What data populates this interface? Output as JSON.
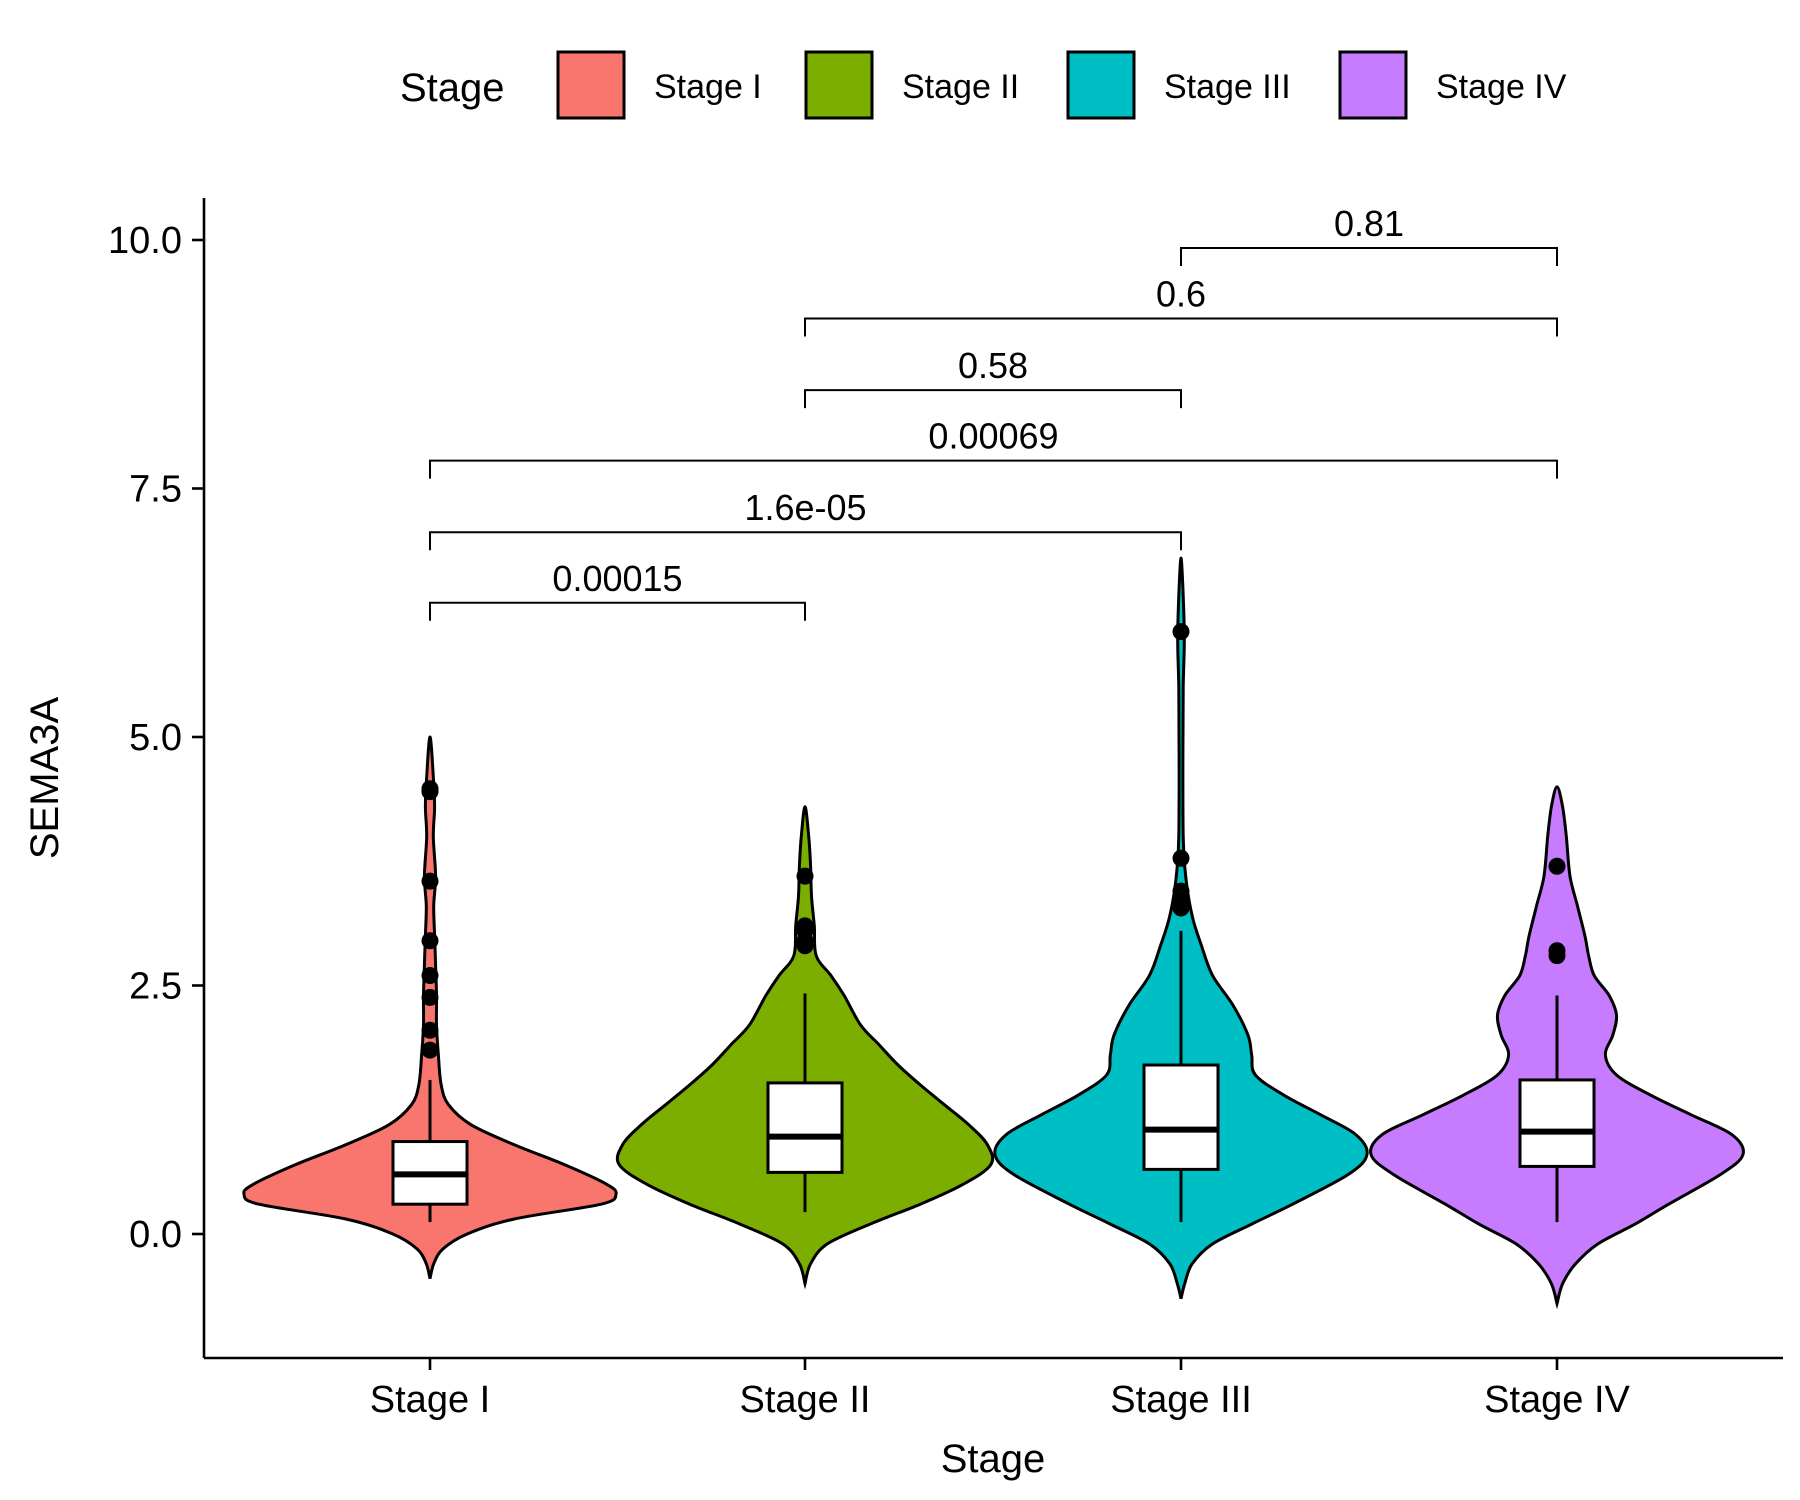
{
  "chart_data": {
    "type": "violin",
    "title": "",
    "xlabel": "Stage",
    "ylabel": "SEMA3A",
    "ylim": [
      -1.2,
      10.4
    ],
    "yticks": [
      0.0,
      2.5,
      5.0,
      7.5,
      10.0
    ],
    "ytick_labels": [
      "0.0",
      "2.5",
      "5.0",
      "7.5",
      "10.0"
    ],
    "grid": false,
    "legend": {
      "title": "Stage",
      "position": "top",
      "entries": [
        "Stage I",
        "Stage II",
        "Stage III",
        "Stage IV"
      ]
    },
    "categories": [
      "Stage I",
      "Stage II",
      "Stage III",
      "Stage IV"
    ],
    "colors": [
      "#F8766D",
      "#7CAE00",
      "#00BFC4",
      "#C77CFF"
    ],
    "violins": [
      {
        "name": "Stage I",
        "density": [
          [
            -0.45,
            0.0
          ],
          [
            -0.3,
            0.02
          ],
          [
            -0.15,
            0.07
          ],
          [
            0.0,
            0.2
          ],
          [
            0.15,
            0.45
          ],
          [
            0.3,
            0.92
          ],
          [
            0.4,
            1.0
          ],
          [
            0.5,
            0.95
          ],
          [
            0.7,
            0.72
          ],
          [
            0.9,
            0.45
          ],
          [
            1.1,
            0.22
          ],
          [
            1.3,
            0.1
          ],
          [
            1.5,
            0.06
          ],
          [
            1.8,
            0.045
          ],
          [
            2.1,
            0.035
          ],
          [
            2.4,
            0.035
          ],
          [
            2.7,
            0.03
          ],
          [
            3.0,
            0.025
          ],
          [
            3.3,
            0.02
          ],
          [
            3.6,
            0.03
          ],
          [
            4.0,
            0.018
          ],
          [
            4.3,
            0.025
          ],
          [
            4.6,
            0.018
          ],
          [
            5.0,
            0.0
          ]
        ],
        "q1": 0.3,
        "median": 0.6,
        "q3": 0.93,
        "whisker_low": 0.12,
        "whisker_high": 1.55,
        "outliers": [
          1.85,
          2.05,
          2.38,
          2.6,
          2.95,
          3.55,
          4.45,
          4.48
        ]
      },
      {
        "name": "Stage II",
        "density": [
          [
            -0.5,
            0.0
          ],
          [
            -0.3,
            0.03
          ],
          [
            -0.1,
            0.12
          ],
          [
            0.1,
            0.35
          ],
          [
            0.3,
            0.62
          ],
          [
            0.5,
            0.85
          ],
          [
            0.7,
            1.0
          ],
          [
            0.9,
            0.98
          ],
          [
            1.1,
            0.88
          ],
          [
            1.3,
            0.75
          ],
          [
            1.5,
            0.62
          ],
          [
            1.7,
            0.5
          ],
          [
            1.9,
            0.4
          ],
          [
            2.1,
            0.3
          ],
          [
            2.4,
            0.21
          ],
          [
            2.6,
            0.14
          ],
          [
            2.8,
            0.06
          ],
          [
            3.1,
            0.05
          ],
          [
            3.4,
            0.035
          ],
          [
            3.7,
            0.03
          ],
          [
            4.0,
            0.02
          ],
          [
            4.3,
            0.0
          ]
        ],
        "q1": 0.62,
        "median": 0.98,
        "q3": 1.52,
        "whisker_low": 0.22,
        "whisker_high": 2.42,
        "outliers": [
          2.9,
          2.95,
          3.05,
          3.1,
          3.6
        ]
      },
      {
        "name": "Stage III",
        "density": [
          [
            -0.65,
            0.0
          ],
          [
            -0.5,
            0.02
          ],
          [
            -0.3,
            0.06
          ],
          [
            -0.1,
            0.17
          ],
          [
            0.1,
            0.38
          ],
          [
            0.3,
            0.6
          ],
          [
            0.6,
            0.9
          ],
          [
            0.8,
            1.0
          ],
          [
            1.0,
            0.94
          ],
          [
            1.2,
            0.75
          ],
          [
            1.4,
            0.55
          ],
          [
            1.6,
            0.4
          ],
          [
            1.8,
            0.38
          ],
          [
            2.0,
            0.36
          ],
          [
            2.3,
            0.28
          ],
          [
            2.6,
            0.17
          ],
          [
            2.9,
            0.11
          ],
          [
            3.2,
            0.06
          ],
          [
            3.6,
            0.025
          ],
          [
            4.0,
            0.012
          ],
          [
            4.8,
            0.01
          ],
          [
            5.5,
            0.012
          ],
          [
            6.0,
            0.018
          ],
          [
            6.5,
            0.01
          ],
          [
            6.8,
            0.0
          ]
        ],
        "q1": 0.65,
        "median": 1.05,
        "q3": 1.7,
        "whisker_low": 0.12,
        "whisker_high": 3.05,
        "outliers": [
          3.28,
          3.35,
          3.45,
          3.78,
          6.06
        ]
      },
      {
        "name": "Stage IV",
        "density": [
          [
            -0.7,
            0.0
          ],
          [
            -0.5,
            0.03
          ],
          [
            -0.3,
            0.1
          ],
          [
            -0.1,
            0.22
          ],
          [
            0.1,
            0.42
          ],
          [
            0.3,
            0.6
          ],
          [
            0.6,
            0.88
          ],
          [
            0.8,
            1.0
          ],
          [
            1.0,
            0.94
          ],
          [
            1.2,
            0.72
          ],
          [
            1.4,
            0.5
          ],
          [
            1.6,
            0.32
          ],
          [
            1.8,
            0.26
          ],
          [
            2.0,
            0.3
          ],
          [
            2.2,
            0.32
          ],
          [
            2.4,
            0.28
          ],
          [
            2.6,
            0.2
          ],
          [
            2.8,
            0.17
          ],
          [
            3.0,
            0.15
          ],
          [
            3.3,
            0.11
          ],
          [
            3.6,
            0.07
          ],
          [
            4.0,
            0.05
          ],
          [
            4.3,
            0.03
          ],
          [
            4.5,
            0.0
          ]
        ],
        "q1": 0.68,
        "median": 1.03,
        "q3": 1.55,
        "whisker_low": 0.12,
        "whisker_high": 2.4,
        "outliers": [
          2.8,
          2.85,
          3.7
        ]
      }
    ],
    "comparisons": [
      {
        "groups": [
          "Stage I",
          "Stage II"
        ],
        "p": "0.00015",
        "y": 6.35
      },
      {
        "groups": [
          "Stage I",
          "Stage III"
        ],
        "p": "1.6e-05",
        "y": 7.06
      },
      {
        "groups": [
          "Stage I",
          "Stage IV"
        ],
        "p": "0.00069",
        "y": 7.78
      },
      {
        "groups": [
          "Stage II",
          "Stage III"
        ],
        "p": "0.58",
        "y": 8.49
      },
      {
        "groups": [
          "Stage II",
          "Stage IV"
        ],
        "p": "0.6",
        "y": 9.21
      },
      {
        "groups": [
          "Stage III",
          "Stage IV"
        ],
        "p": "0.81",
        "y": 9.92
      }
    ]
  }
}
